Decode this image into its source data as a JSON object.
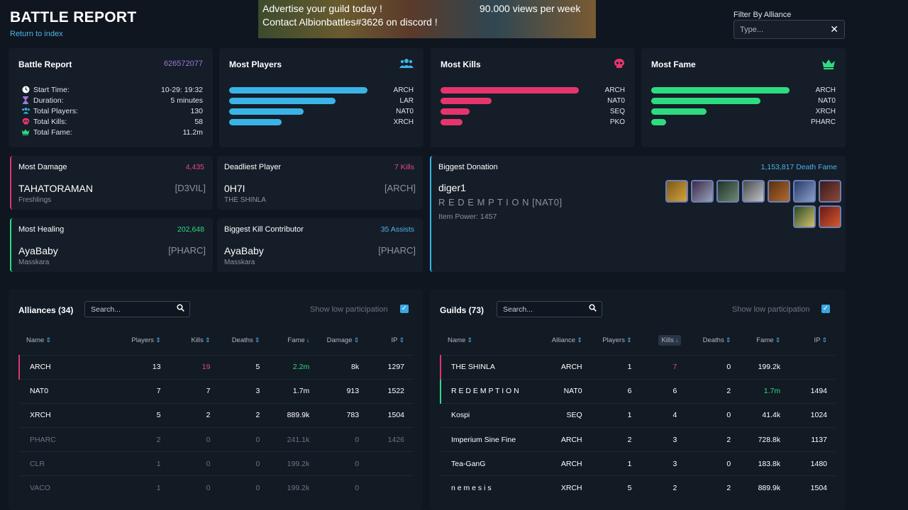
{
  "header": {
    "title": "BATTLE REPORT",
    "back_link": "Return to index",
    "filter_label": "Filter By Alliance",
    "filter_placeholder": "Type..."
  },
  "ad_banner": {
    "line1": "Advertise your guild today !",
    "line2": "Contact Albionbattles#3626 on discord !",
    "views": "90.000 views per week"
  },
  "battle_report": {
    "title": "Battle Report",
    "id": "626572077",
    "stats": [
      {
        "label": "Start Time:",
        "value": "10-29: 19:32",
        "icon": "clock-icon"
      },
      {
        "label": "Duration:",
        "value": "5 minutes",
        "icon": "hourglass-icon"
      },
      {
        "label": "Total Players:",
        "value": "130",
        "icon": "users-icon"
      },
      {
        "label": "Total Kills:",
        "value": "58",
        "icon": "skull-icon"
      },
      {
        "label": "Total Fame:",
        "value": "11.2m",
        "icon": "crown-icon"
      }
    ]
  },
  "most_players": {
    "title": "Most Players",
    "icon": "users-icon",
    "color": "#3ab4e6",
    "bars": [
      {
        "label": "ARCH",
        "fraction": 1.0
      },
      {
        "label": "LAR",
        "fraction": 0.77
      },
      {
        "label": "NAT0",
        "fraction": 0.54
      },
      {
        "label": "XRCH",
        "fraction": 0.38
      }
    ]
  },
  "most_kills": {
    "title": "Most Kills",
    "icon": "skull-icon",
    "color": "#e6356e",
    "bars": [
      {
        "label": "ARCH",
        "fraction": 1.0
      },
      {
        "label": "NAT0",
        "fraction": 0.37
      },
      {
        "label": "SEQ",
        "fraction": 0.21
      },
      {
        "label": "PKO",
        "fraction": 0.16
      }
    ]
  },
  "most_fame": {
    "title": "Most Fame",
    "icon": "crown-icon",
    "color": "#2ddc80",
    "bars": [
      {
        "label": "ARCH",
        "fraction": 1.0
      },
      {
        "label": "NAT0",
        "fraction": 0.79
      },
      {
        "label": "XRCH",
        "fraction": 0.4
      },
      {
        "label": "PHARC",
        "fraction": 0.11
      }
    ]
  },
  "highlights": {
    "most_damage": {
      "title": "Most Damage",
      "value": "4,435",
      "name": "TAHATORAMAN",
      "tag": "[D3VIL]",
      "sub": "Freshlings"
    },
    "deadliest": {
      "title": "Deadliest Player",
      "value": "7 Kills",
      "name": "0H7I",
      "tag": "[ARCH]",
      "sub": "THE SHINLA"
    },
    "most_healing": {
      "title": "Most Healing",
      "value": "202,648",
      "name": "AyaBaby",
      "tag": "[PHARC]",
      "sub": "Masskara"
    },
    "kill_contributor": {
      "title": "Biggest Kill Contributor",
      "value": "35 Assists",
      "name": "AyaBaby",
      "tag": "[PHARC]",
      "sub": "Masskara"
    },
    "donation": {
      "title": "Biggest Donation",
      "value": "1,153,817 Death Fame",
      "name": "diger1",
      "guild": "R E D E M P T I O N [NAT0]",
      "item_power": "Item Power: 1457"
    }
  },
  "alliances": {
    "title": "Alliances (34)",
    "search_placeholder": "Search...",
    "low_participation": "Show low participation",
    "columns": [
      "Name",
      "Players",
      "Kills",
      "Deaths",
      "Fame",
      "Damage",
      "IP"
    ],
    "rows": [
      {
        "name": "ARCH",
        "players": "13",
        "kills": "19",
        "deaths": "5",
        "fame": "2.2m",
        "damage": "8k",
        "ip": "1297"
      },
      {
        "name": "NAT0",
        "players": "7",
        "kills": "7",
        "deaths": "3",
        "fame": "1.7m",
        "damage": "913",
        "ip": "1522"
      },
      {
        "name": "XRCH",
        "players": "5",
        "kills": "2",
        "deaths": "2",
        "fame": "889.9k",
        "damage": "783",
        "ip": "1504"
      },
      {
        "name": "PHARC",
        "players": "2",
        "kills": "0",
        "deaths": "0",
        "fame": "241.1k",
        "damage": "0",
        "ip": "1426"
      },
      {
        "name": "CLR",
        "players": "1",
        "kills": "0",
        "deaths": "0",
        "fame": "199.2k",
        "damage": "0",
        "ip": ""
      },
      {
        "name": "VACO",
        "players": "1",
        "kills": "0",
        "deaths": "0",
        "fame": "199.2k",
        "damage": "0",
        "ip": ""
      }
    ]
  },
  "guilds": {
    "title": "Guilds (73)",
    "search_placeholder": "Search...",
    "low_participation": "Show low participation",
    "columns": [
      "Name",
      "Alliance",
      "Players",
      "Kills",
      "Deaths",
      "Fame",
      "IP"
    ],
    "rows": [
      {
        "name": "THE SHINLA",
        "alliance": "ARCH",
        "players": "1",
        "kills": "7",
        "deaths": "0",
        "fame": "199.2k",
        "ip": ""
      },
      {
        "name": "R E D E M P T I O N",
        "alliance": "NAT0",
        "players": "6",
        "kills": "6",
        "deaths": "2",
        "fame": "1.7m",
        "ip": "1494"
      },
      {
        "name": "Kospi",
        "alliance": "SEQ",
        "players": "1",
        "kills": "4",
        "deaths": "0",
        "fame": "41.4k",
        "ip": "1024"
      },
      {
        "name": "Imperium Sine Fine",
        "alliance": "ARCH",
        "players": "2",
        "kills": "3",
        "deaths": "2",
        "fame": "728.8k",
        "ip": "1137"
      },
      {
        "name": "Tea-GanG",
        "alliance": "ARCH",
        "players": "1",
        "kills": "3",
        "deaths": "0",
        "fame": "183.8k",
        "ip": "1480"
      },
      {
        "name": "n e m e s i s",
        "alliance": "XRCH",
        "players": "5",
        "kills": "2",
        "deaths": "2",
        "fame": "889.9k",
        "ip": "1504"
      }
    ]
  }
}
